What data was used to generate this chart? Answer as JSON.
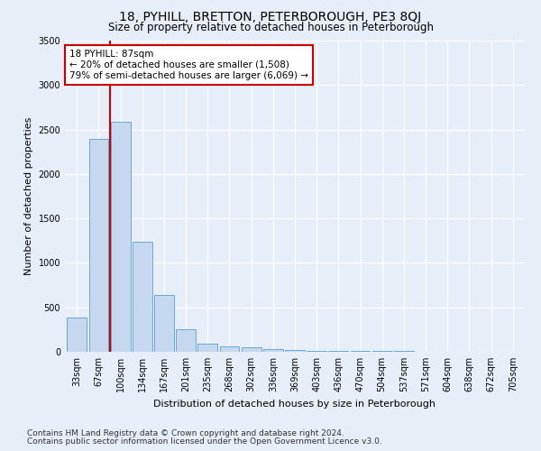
{
  "title": "18, PYHILL, BRETTON, PETERBOROUGH, PE3 8QJ",
  "subtitle": "Size of property relative to detached houses in Peterborough",
  "xlabel": "Distribution of detached houses by size in Peterborough",
  "ylabel": "Number of detached properties",
  "categories": [
    "33sqm",
    "67sqm",
    "100sqm",
    "134sqm",
    "167sqm",
    "201sqm",
    "235sqm",
    "268sqm",
    "302sqm",
    "336sqm",
    "369sqm",
    "403sqm",
    "436sqm",
    "470sqm",
    "504sqm",
    "537sqm",
    "571sqm",
    "604sqm",
    "638sqm",
    "672sqm",
    "705sqm"
  ],
  "values": [
    390,
    2390,
    2590,
    1240,
    640,
    255,
    95,
    60,
    55,
    35,
    20,
    15,
    12,
    10,
    8,
    6,
    5,
    4,
    3,
    3,
    2
  ],
  "bar_color": "#c5d8f0",
  "bar_edge_color": "#6aaad4",
  "vline_x": 1.5,
  "vline_color": "#cc0000",
  "annotation_text": "18 PYHILL: 87sqm\n← 20% of detached houses are smaller (1,508)\n79% of semi-detached houses are larger (6,069) →",
  "annotation_box_color": "#ffffff",
  "annotation_box_edge": "#cc0000",
  "ylim": [
    0,
    3500
  ],
  "yticks": [
    0,
    500,
    1000,
    1500,
    2000,
    2500,
    3000,
    3500
  ],
  "footer1": "Contains HM Land Registry data © Crown copyright and database right 2024.",
  "footer2": "Contains public sector information licensed under the Open Government Licence v3.0.",
  "bg_color": "#e8eef8",
  "plot_bg_color": "#e8eef8",
  "grid_color": "#ffffff",
  "title_fontsize": 10,
  "subtitle_fontsize": 8.5,
  "label_fontsize": 8,
  "tick_fontsize": 7,
  "footer_fontsize": 6.5,
  "ann_fontsize": 7.5
}
